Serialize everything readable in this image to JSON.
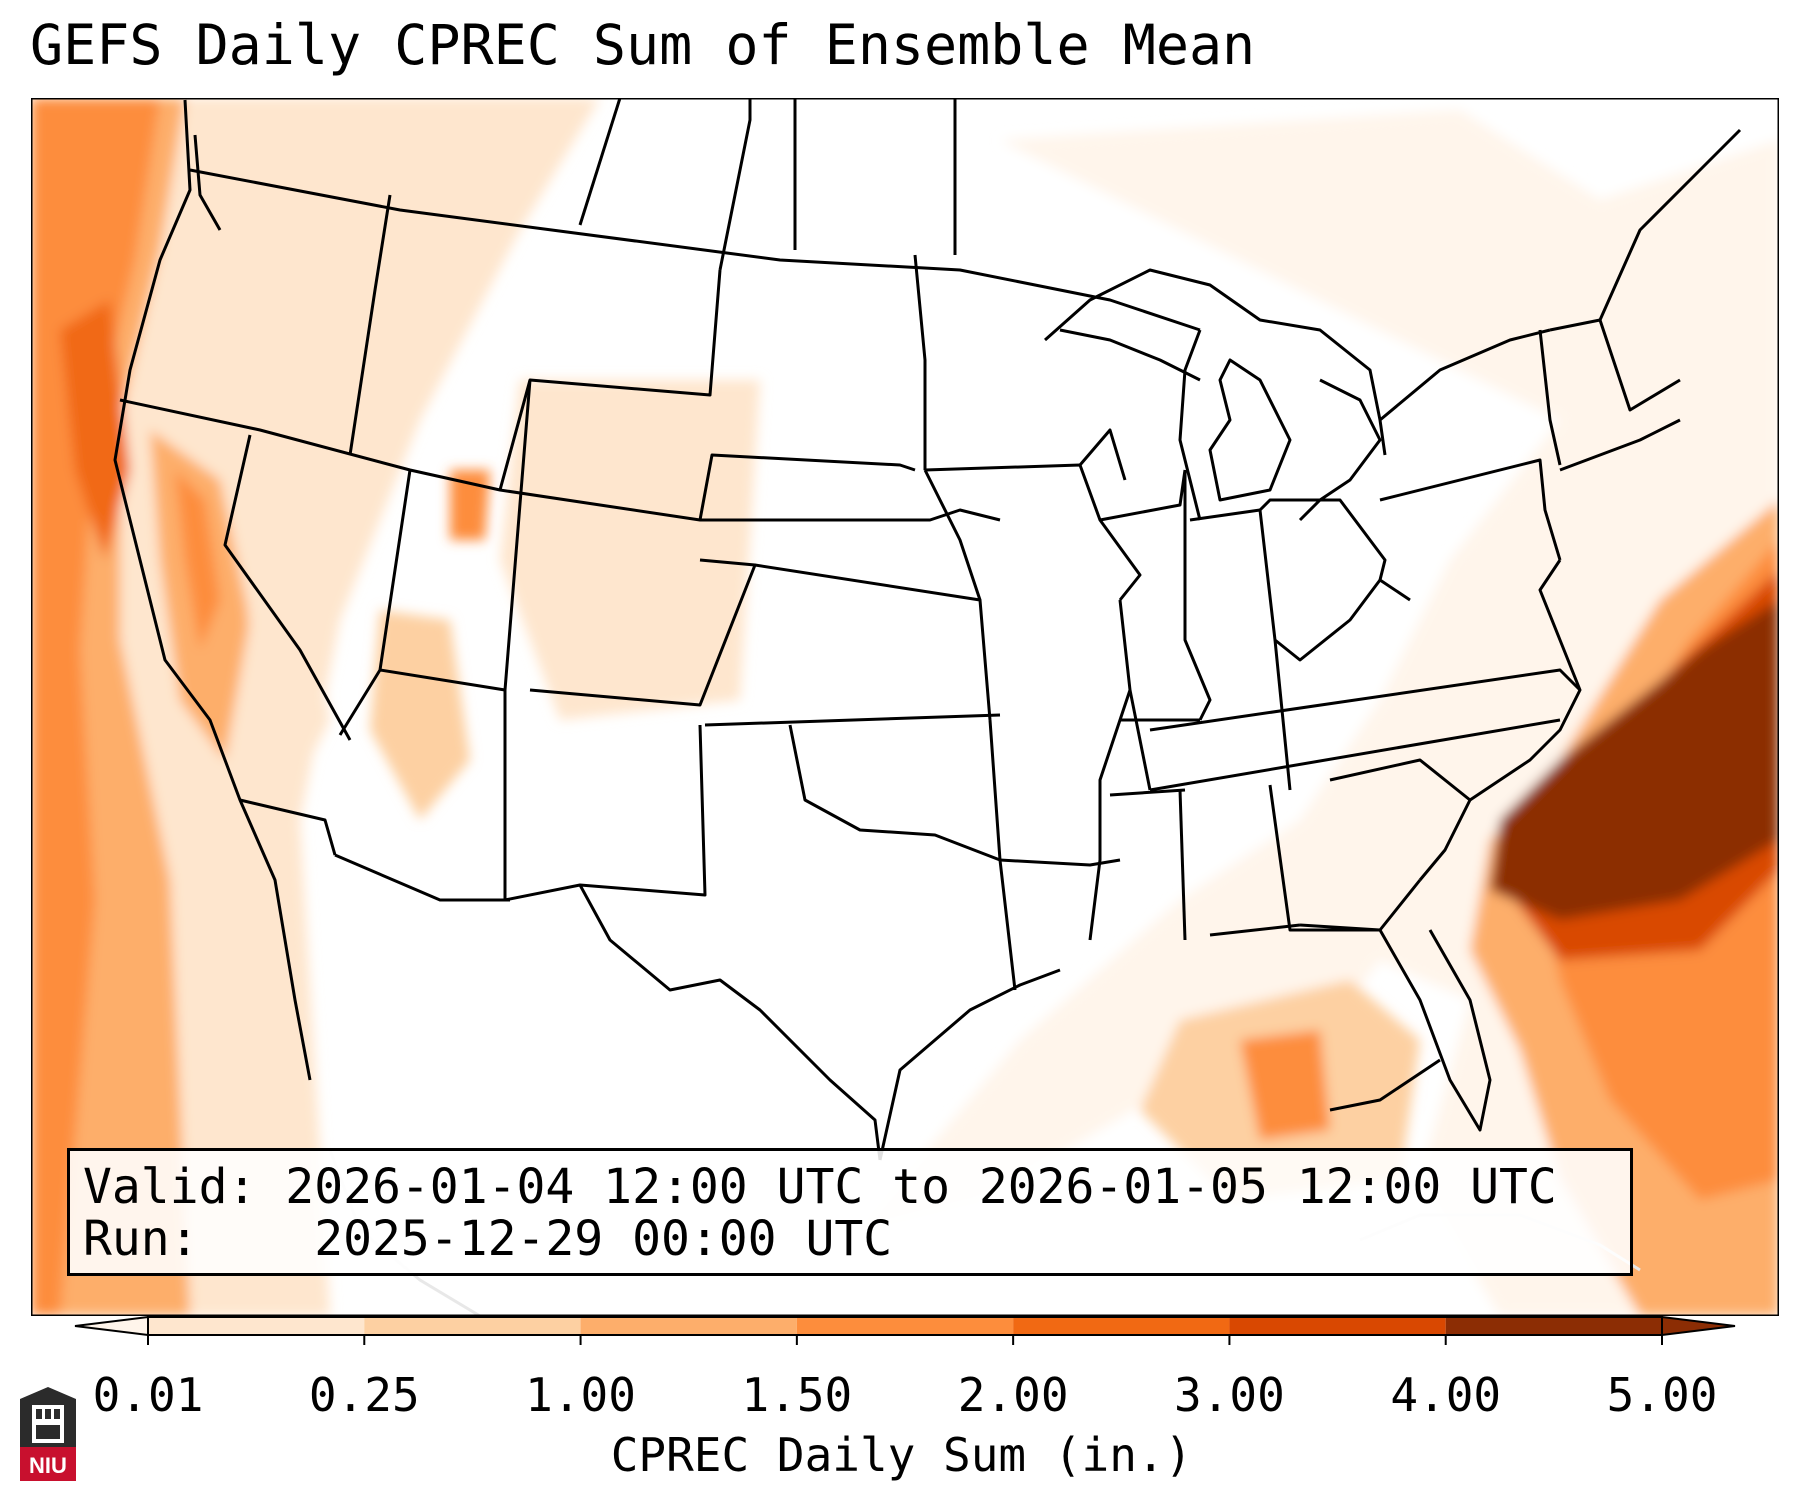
{
  "title": "GEFS Daily CPREC Sum of Ensemble Mean",
  "info": {
    "valid_label": "Valid:",
    "valid_value": "2026-01-04 12:00 UTC to 2026-01-05 12:00 UTC",
    "run_label": "Run:",
    "run_value": "2025-12-29 00:00 UTC"
  },
  "colorbar": {
    "label": "CPREC Daily Sum (in.)",
    "ticks": [
      "0.01",
      "0.25",
      "1.00",
      "1.50",
      "2.00",
      "3.00",
      "4.00",
      "5.00"
    ],
    "colors": [
      "#fff5eb",
      "#fee6ce",
      "#fdd0a2",
      "#fdae6b",
      "#fd8d3c",
      "#f16913",
      "#d94801",
      "#8c2d04"
    ],
    "extend": "both"
  },
  "logo": {
    "text": "NIU",
    "color": "#c8102e"
  },
  "colors": {
    "outline": "#000000",
    "background": "#ffffff"
  }
}
